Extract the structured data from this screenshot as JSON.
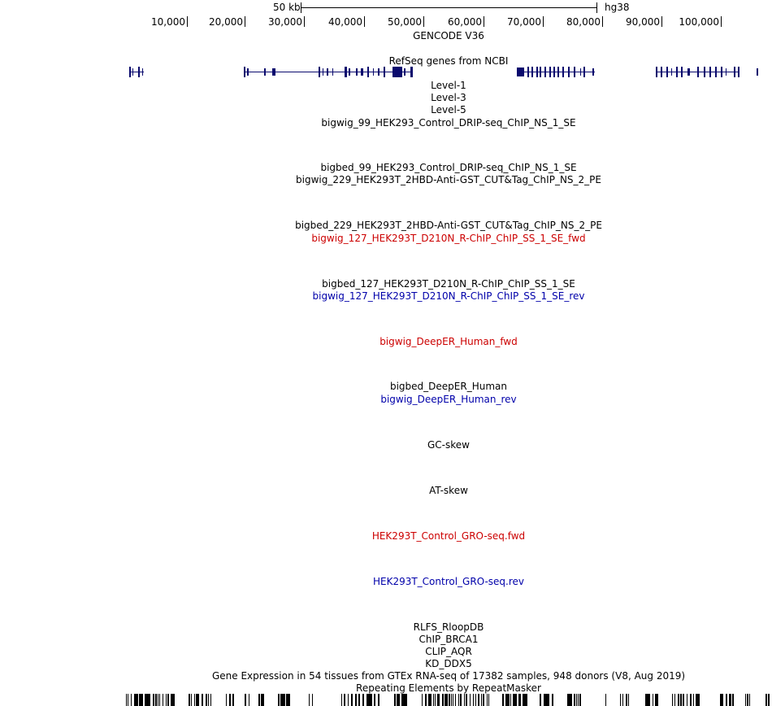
{
  "scale_bar": {
    "size_label": "50 kb",
    "assembly_label": "hg38"
  },
  "ruler": {
    "ticks": [
      "10,000",
      "20,000",
      "30,000",
      "40,000",
      "50,000",
      "60,000",
      "70,000",
      "80,000",
      "90,000",
      "100,000"
    ]
  },
  "tracks": [
    {
      "label": "GENCODE V36",
      "color": "black"
    },
    {
      "label": "RefSeq genes from NCBI",
      "color": "black"
    },
    {
      "label": "Level-1",
      "color": "black"
    },
    {
      "label": "Level-3",
      "color": "black"
    },
    {
      "label": "Level-5",
      "color": "black"
    },
    {
      "label": "bigwig_99_HEK293_Control_DRIP-seq_ChIP_NS_1_SE",
      "color": "black"
    },
    {
      "label": "bigbed_99_HEK293_Control_DRIP-seq_ChIP_NS_1_SE",
      "color": "black"
    },
    {
      "label": "bigwig_229_HEK293T_2HBD-Anti-GST_CUT&Tag_ChIP_NS_2_PE",
      "color": "black"
    },
    {
      "label": "bigbed_229_HEK293T_2HBD-Anti-GST_CUT&Tag_ChIP_NS_2_PE",
      "color": "black"
    },
    {
      "label": "bigwig_127_HEK293T_D210N_R-ChIP_ChIP_SS_1_SE_fwd",
      "color": "red"
    },
    {
      "label": "bigbed_127_HEK293T_D210N_R-ChIP_ChIP_SS_1_SE",
      "color": "black"
    },
    {
      "label": "bigwig_127_HEK293T_D210N_R-ChIP_ChIP_SS_1_SE_rev",
      "color": "blue"
    },
    {
      "label": "bigwig_DeepER_Human_fwd",
      "color": "red"
    },
    {
      "label": "bigbed_DeepER_Human",
      "color": "black"
    },
    {
      "label": "bigwig_DeepER_Human_rev",
      "color": "blue"
    },
    {
      "label": "GC-skew",
      "color": "black"
    },
    {
      "label": "AT-skew",
      "color": "black"
    },
    {
      "label": "HEK293T_Control_GRO-seq.fwd",
      "color": "red"
    },
    {
      "label": "HEK293T_Control_GRO-seq.rev",
      "color": "blue"
    },
    {
      "label": "RLFS_RloopDB",
      "color": "black"
    },
    {
      "label": "ChIP_BRCA1",
      "color": "black"
    },
    {
      "label": "CLIP_AQR",
      "color": "black"
    },
    {
      "label": "KD_DDX5",
      "color": "black"
    },
    {
      "label": "Gene Expression in 54 tissues from GTEx RNA-seq of 17382 samples, 948 donors (V8, Aug 2019)",
      "color": "black"
    },
    {
      "label": "Repeating Elements by RepeatMasker",
      "color": "black"
    }
  ],
  "colors": {
    "gene_feature": "#0a0a6e",
    "red_track": "#cc0000",
    "blue_track": "#0000aa"
  }
}
